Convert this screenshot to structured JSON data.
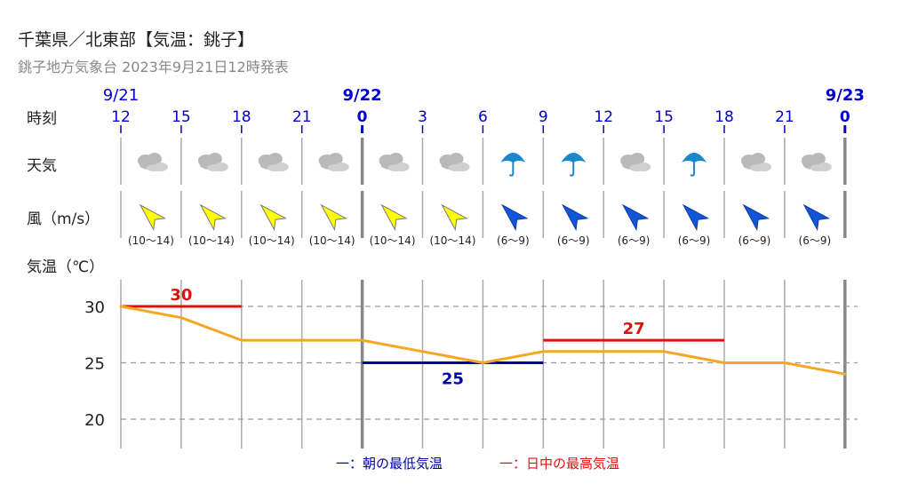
{
  "header": {
    "title": "千葉県／北東部【気温：銚子】",
    "subtitle": "銚子地方気象台 2023年9月21日12時発表"
  },
  "rows": {
    "time": "時刻",
    "weather": "天気",
    "wind": "風（m/s）",
    "temp": "気温（℃）"
  },
  "colors": {
    "accent_blue": "#0000cc",
    "max_red": "#dd1111",
    "min_blue": "#0000aa",
    "temp_orange": "#f5a623",
    "wind_yellow": "#ffff00",
    "wind_blue": "#1155dd",
    "cloud_gray": "#b9b9b9",
    "umbrella_blue": "#1a88cc"
  },
  "timeline": [
    {
      "date": "9/21",
      "hour": "12",
      "weather": "cloud-icon",
      "wind_speed": "(10～14)",
      "wind_color": "yellow",
      "wind_direction": "southwest"
    },
    {
      "date": "",
      "hour": "15",
      "weather": "cloud-icon",
      "wind_speed": "(10～14)",
      "wind_color": "yellow",
      "wind_direction": "southwest"
    },
    {
      "date": "",
      "hour": "18",
      "weather": "cloud-icon",
      "wind_speed": "(10～14)",
      "wind_color": "yellow",
      "wind_direction": "southwest"
    },
    {
      "date": "",
      "hour": "21",
      "weather": "cloud-icon",
      "wind_speed": "(10～14)",
      "wind_color": "yellow",
      "wind_direction": "southwest"
    },
    {
      "date": "9/22",
      "hour": "0",
      "weather": "cloud-icon",
      "wind_speed": "(10～14)",
      "wind_color": "yellow",
      "wind_direction": "southwest"
    },
    {
      "date": "",
      "hour": "3",
      "weather": "cloud-icon",
      "wind_speed": "(10～14)",
      "wind_color": "yellow",
      "wind_direction": "southwest"
    },
    {
      "date": "",
      "hour": "6",
      "weather": "umbrella-icon",
      "wind_speed": "(6～9)",
      "wind_color": "blue",
      "wind_direction": "southwest"
    },
    {
      "date": "",
      "hour": "9",
      "weather": "umbrella-icon",
      "wind_speed": "(6～9)",
      "wind_color": "blue",
      "wind_direction": "southwest"
    },
    {
      "date": "",
      "hour": "12",
      "weather": "cloud-icon",
      "wind_speed": "(6～9)",
      "wind_color": "blue",
      "wind_direction": "southwest"
    },
    {
      "date": "",
      "hour": "15",
      "weather": "umbrella-icon",
      "wind_speed": "(6～9)",
      "wind_color": "blue",
      "wind_direction": "southwest"
    },
    {
      "date": "",
      "hour": "18",
      "weather": "cloud-icon",
      "wind_speed": "(6～9)",
      "wind_color": "blue",
      "wind_direction": "southwest"
    },
    {
      "date": "",
      "hour": "21",
      "weather": "cloud-icon",
      "wind_speed": "(6～9)",
      "wind_color": "blue",
      "wind_direction": "southwest"
    },
    {
      "date": "9/23",
      "hour": "0",
      "weather": "",
      "wind_speed": "",
      "wind_color": "",
      "wind_direction": ""
    }
  ],
  "chart_data": {
    "type": "line",
    "x": [
      "9/21 12",
      "9/21 15",
      "9/21 18",
      "9/21 21",
      "9/22 0",
      "9/22 3",
      "9/22 6",
      "9/22 9",
      "9/22 12",
      "9/22 15",
      "9/22 18",
      "9/22 21",
      "9/23 0"
    ],
    "series": [
      {
        "values": [
          30,
          29,
          27,
          27,
          27,
          26,
          25,
          26,
          26,
          26,
          25,
          25,
          24
        ]
      }
    ],
    "ylabel": "気温（℃）",
    "ylim": [
      18,
      32
    ],
    "yticks": [
      30,
      25,
      20
    ],
    "grid": true,
    "max_temps": [
      {
        "label": "30",
        "value": 30,
        "x_start": "9/21 12",
        "x_end": "9/21 18"
      },
      {
        "label": "27",
        "value": 27,
        "x_start": "9/22 9",
        "x_end": "9/22 18"
      }
    ],
    "min_temps": [
      {
        "label": "25",
        "value": 25,
        "x_start": "9/22 0",
        "x_end": "9/22 9"
      }
    ],
    "legend": [
      {
        "label": "一：朝の最低気温",
        "color": "#0000aa"
      },
      {
        "label": "一：日中の最高気温",
        "color": "#dd1111"
      }
    ],
    "legend_position": "bottom-center"
  }
}
